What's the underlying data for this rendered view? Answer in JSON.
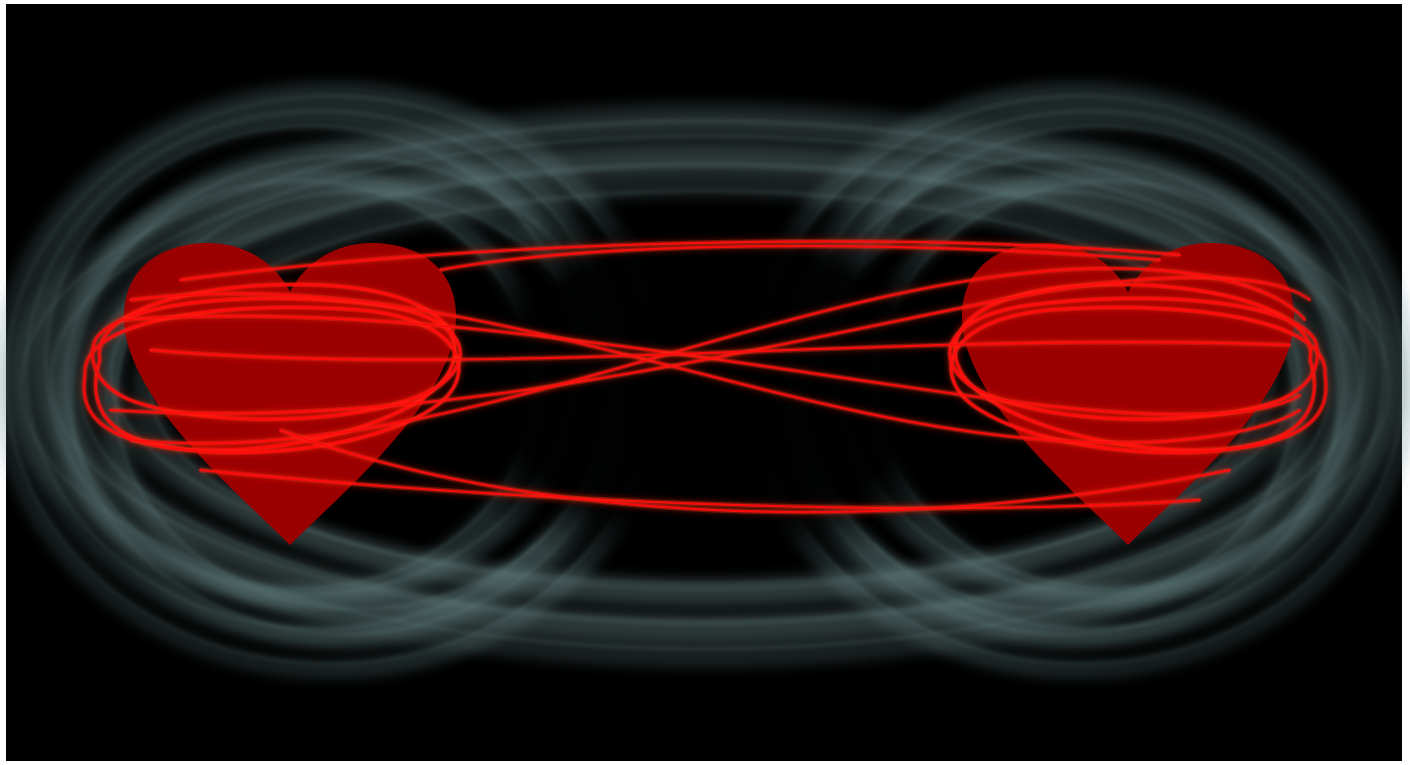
{
  "scene": {
    "frame_color": "#ffffff",
    "background_color": "#000000",
    "halo_color": "#6f8f8f",
    "heart_color": "#9a0000",
    "ribbon_color": "#ff0d0d",
    "ribbon_glow_color": "#ff2a1a",
    "icons": [
      "heart-icon",
      "heart-icon"
    ],
    "text": []
  }
}
